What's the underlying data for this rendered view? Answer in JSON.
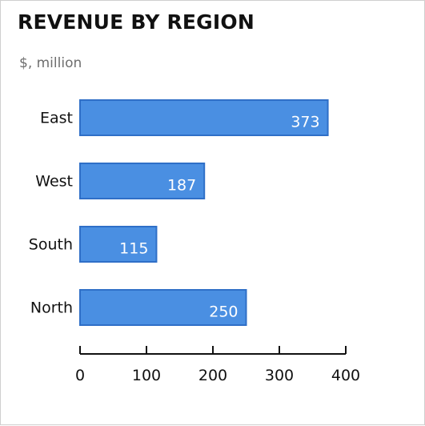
{
  "chart_data": {
    "type": "bar",
    "orientation": "horizontal",
    "title": "REVENUE BY REGION",
    "subtitle": "$, million",
    "categories": [
      "East",
      "West",
      "South",
      "North"
    ],
    "values": [
      373,
      187,
      115,
      250
    ],
    "xlim": [
      0,
      400
    ],
    "x_ticks": [
      0,
      100,
      200,
      300,
      400
    ],
    "grid": false,
    "legend": "none",
    "bar_color": "#4a8fe2",
    "bar_edge_color": "#2f6fc7"
  }
}
